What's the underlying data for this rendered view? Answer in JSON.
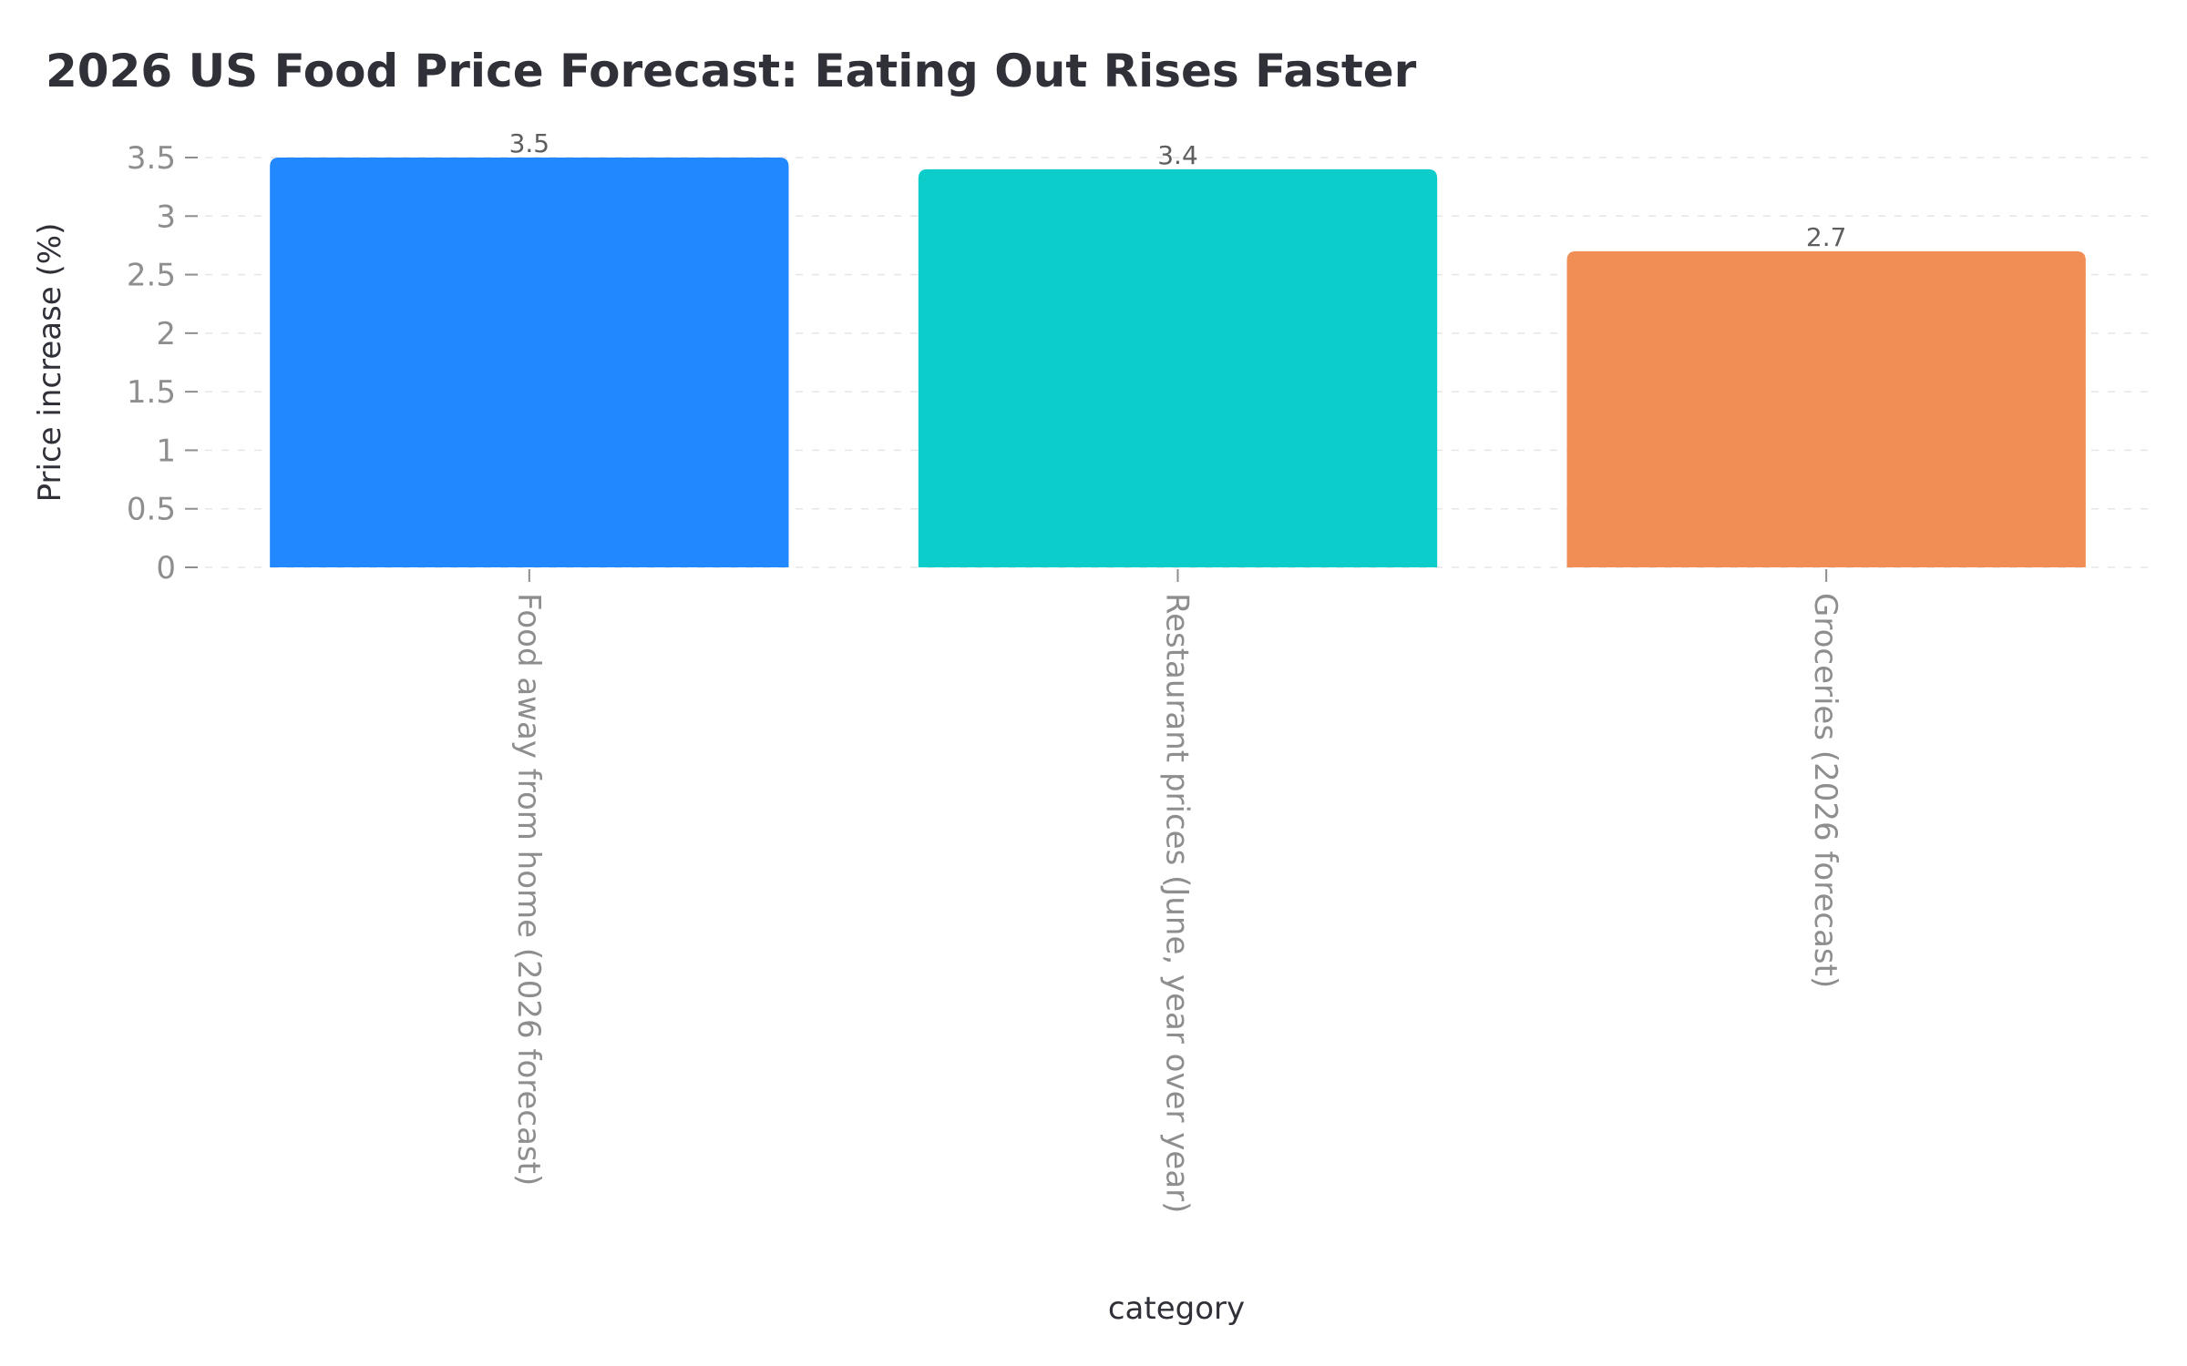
{
  "chart_data": {
    "type": "bar",
    "title": "2026 US Food Price Forecast: Eating Out Rises Faster",
    "xlabel": "category",
    "ylabel": "Price increase (%)",
    "ylim": [
      0,
      3.5
    ],
    "yticks": [
      "0",
      "0.5",
      "1",
      "1.5",
      "2",
      "2.5",
      "3",
      "3.5"
    ],
    "ytick_values": [
      0,
      0.5,
      1,
      1.5,
      2,
      2.5,
      3,
      3.5
    ],
    "grid": true,
    "legend": "none",
    "categories": [
      "Food away from home (2026 forecast)",
      "Restaurant prices (June, year over year)",
      "Groceries (2026 forecast)"
    ],
    "values": [
      3.5,
      3.4,
      2.7
    ],
    "value_labels": [
      "3.5",
      "3.4",
      "2.7"
    ],
    "colors": [
      "#2288ff",
      "#0dcdca",
      "#f08e56"
    ]
  }
}
